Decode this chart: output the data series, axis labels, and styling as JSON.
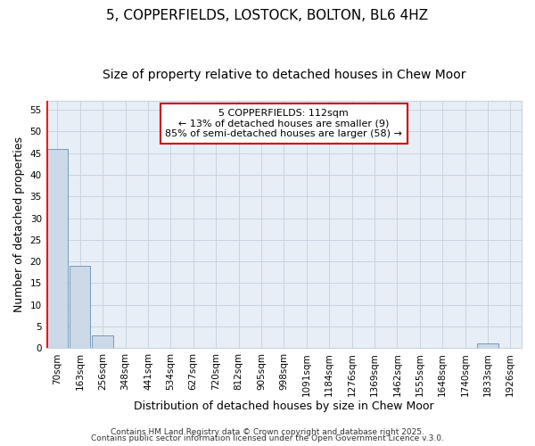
{
  "title1": "5, COPPERFIELDS, LOSTOCK, BOLTON, BL6 4HZ",
  "title2": "Size of property relative to detached houses in Chew Moor",
  "xlabel": "Distribution of detached houses by size in Chew Moor",
  "ylabel": "Number of detached properties",
  "categories": [
    "70sqm",
    "163sqm",
    "256sqm",
    "348sqm",
    "441sqm",
    "534sqm",
    "627sqm",
    "720sqm",
    "812sqm",
    "905sqm",
    "998sqm",
    "1091sqm",
    "1184sqm",
    "1276sqm",
    "1369sqm",
    "1462sqm",
    "1555sqm",
    "1648sqm",
    "1740sqm",
    "1833sqm",
    "1926sqm"
  ],
  "values": [
    46,
    19,
    3,
    0,
    0,
    0,
    0,
    0,
    0,
    0,
    0,
    0,
    0,
    0,
    0,
    0,
    0,
    0,
    0,
    1,
    0
  ],
  "bar_color": "#ccd9e8",
  "bar_edge_color": "#7799bb",
  "annotation_text": "5 COPPERFIELDS: 112sqm\n← 13% of detached houses are smaller (9)\n85% of semi-detached houses are larger (58) →",
  "annotation_box_color": "#ffffff",
  "annotation_border_color": "#cc0000",
  "ylim": [
    0,
    57
  ],
  "yticks": [
    0,
    5,
    10,
    15,
    20,
    25,
    30,
    35,
    40,
    45,
    50,
    55
  ],
  "footer1": "Contains HM Land Registry data © Crown copyright and database right 2025.",
  "footer2": "Contains public sector information licensed under the Open Government Licence v.3.0.",
  "fig_background": "#ffffff",
  "plot_background": "#e8eef5",
  "grid_color": "#c8d4e0",
  "title1_fontsize": 11,
  "title2_fontsize": 10,
  "tick_fontsize": 7.5,
  "ylabel_fontsize": 9,
  "xlabel_fontsize": 9,
  "footer_fontsize": 6.5,
  "ann_fontsize": 8
}
